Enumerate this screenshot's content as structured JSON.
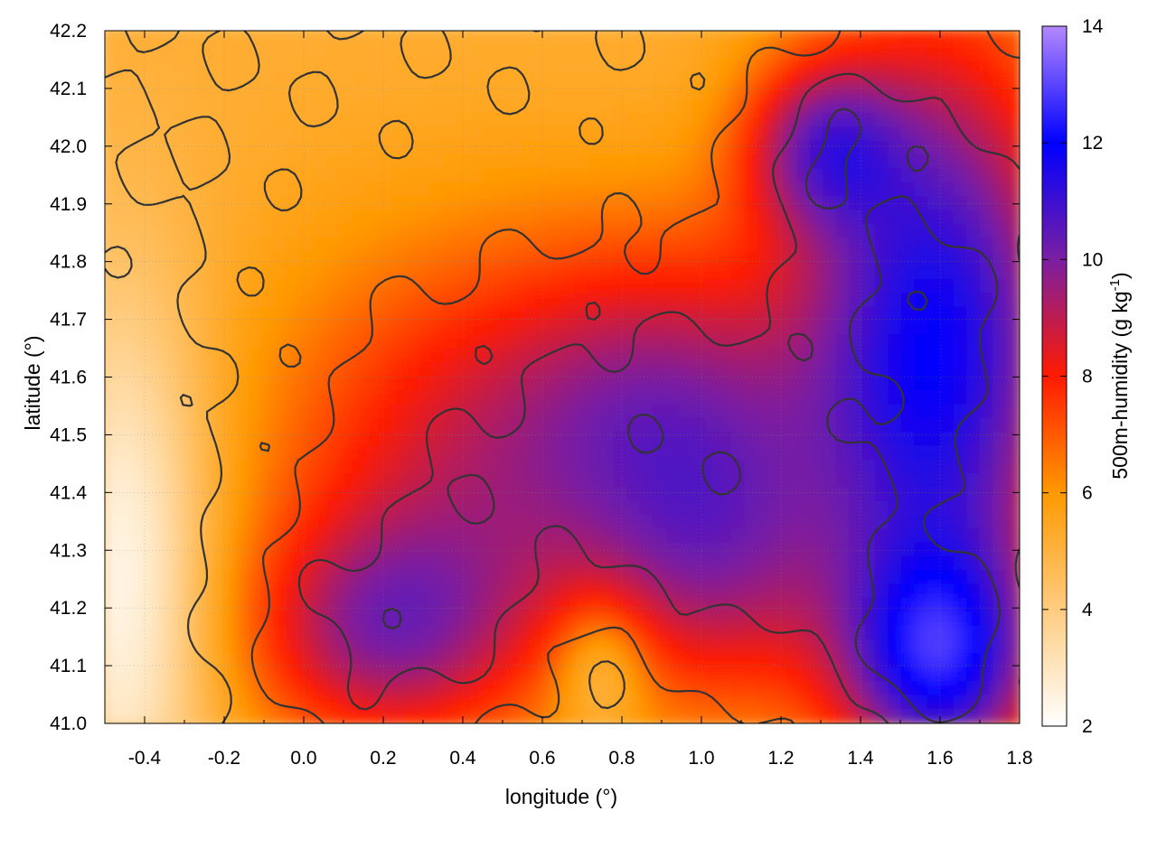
{
  "chart_data": {
    "type": "heatmap",
    "title": "",
    "xlabel": "longitude (°)",
    "ylabel": "latitude (°)",
    "colorbar_label": "500m-humidity (g kg",
    "colorbar_label_sup": "-1",
    "colorbar_label_end": ")",
    "xlim": [
      -0.5,
      1.8
    ],
    "ylim": [
      41.0,
      42.2
    ],
    "clim": [
      2,
      14
    ],
    "x_ticks": [
      "-0.4",
      "-0.2",
      "0.0",
      "0.2",
      "0.4",
      "0.6",
      "0.8",
      "1.0",
      "1.2",
      "1.4",
      "1.6",
      "1.8"
    ],
    "x_tick_values": [
      -0.4,
      -0.2,
      0.0,
      0.2,
      0.4,
      0.6,
      0.8,
      1.0,
      1.2,
      1.4,
      1.6,
      1.8
    ],
    "y_ticks": [
      "41.0",
      "41.1",
      "41.2",
      "41.3",
      "41.4",
      "41.5",
      "41.6",
      "41.7",
      "41.8",
      "41.9",
      "42.0",
      "42.1",
      "42.2"
    ],
    "y_tick_values": [
      41.0,
      41.1,
      41.2,
      41.3,
      41.4,
      41.5,
      41.6,
      41.7,
      41.8,
      41.9,
      42.0,
      42.1,
      42.2
    ],
    "colorbar_ticks": [
      "2",
      "4",
      "6",
      "8",
      "10",
      "12",
      "14"
    ],
    "colorbar_tick_values": [
      2,
      4,
      6,
      8,
      10,
      12,
      14
    ],
    "colormap": [
      {
        "value": 2,
        "color": "#ffffff"
      },
      {
        "value": 4,
        "color": "#ffcc80"
      },
      {
        "value": 6,
        "color": "#ff9900"
      },
      {
        "value": 8,
        "color": "#ff1a00"
      },
      {
        "value": 10,
        "color": "#7a1fa2"
      },
      {
        "value": 12,
        "color": "#0000ff"
      },
      {
        "value": 14,
        "color": "#b388ff"
      }
    ],
    "grid": true,
    "contours": true,
    "contour_color": "#333333"
  }
}
